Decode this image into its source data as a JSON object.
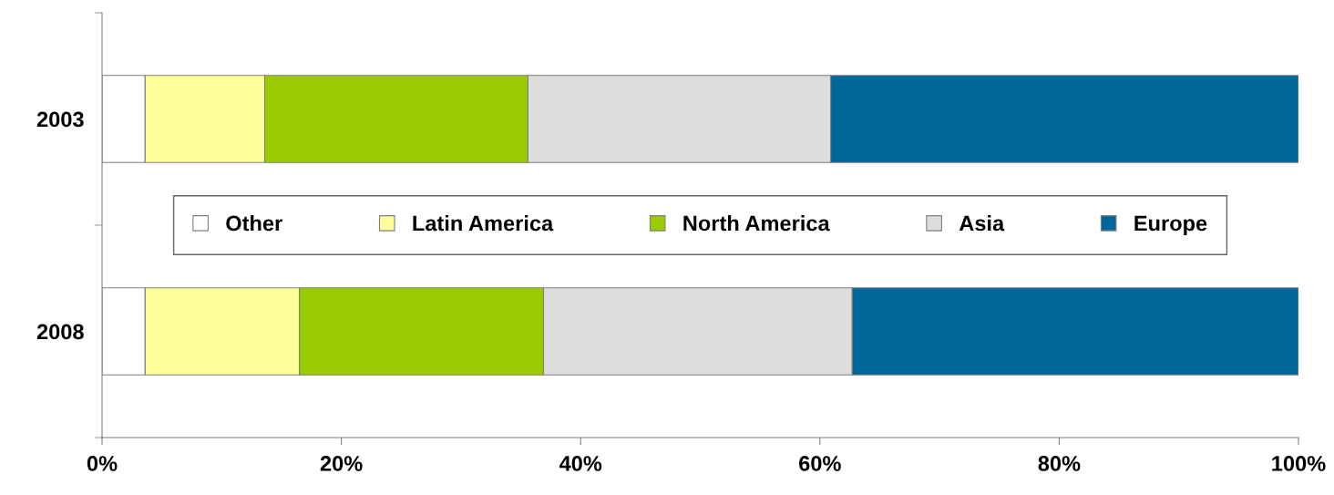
{
  "chart_data": {
    "type": "bar",
    "orientation": "horizontal",
    "stacked": true,
    "categories": [
      "2003",
      "2008"
    ],
    "series": [
      {
        "name": "Other",
        "color": "#ffffff",
        "values": [
          3.6,
          3.6
        ]
      },
      {
        "name": "Latin America",
        "color": "#ffff99",
        "values": [
          10.0,
          12.9
        ]
      },
      {
        "name": "North America",
        "color": "#99cc00",
        "values": [
          22.0,
          20.4
        ]
      },
      {
        "name": "Asia",
        "color": "#dddddd",
        "values": [
          25.3,
          25.8
        ]
      },
      {
        "name": "Europe",
        "color": "#006699",
        "values": [
          39.1,
          37.3
        ]
      }
    ],
    "xlim": [
      0,
      100
    ],
    "xticks": [
      {
        "value": 0,
        "label": "0%"
      },
      {
        "value": 20,
        "label": "20%"
      },
      {
        "value": 40,
        "label": "40%"
      },
      {
        "value": 60,
        "label": "60%"
      },
      {
        "value": 80,
        "label": "80%"
      },
      {
        "value": 100,
        "label": "100%"
      }
    ],
    "grid": false,
    "legend": "center"
  }
}
